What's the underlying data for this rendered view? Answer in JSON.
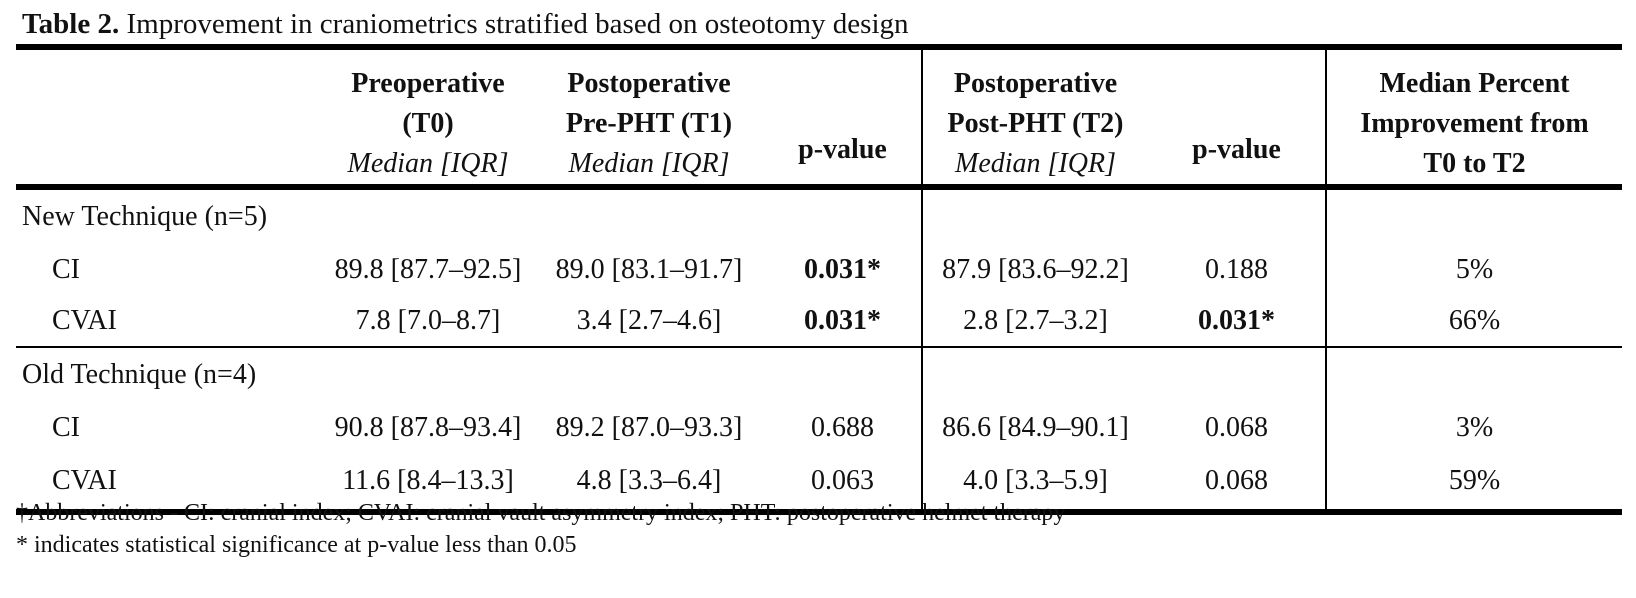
{
  "caption": {
    "label": "Table 2.",
    "text": " Improvement in craniometrics stratified based on osteotomy design"
  },
  "header": {
    "pre": {
      "line1": "Preoperative",
      "line2": "(T0)",
      "sub": "Median [IQR]"
    },
    "post1": {
      "line1": "Postoperative",
      "line2": "Pre-PHT (T1)",
      "sub": "Median [IQR]"
    },
    "pval1": "p-value",
    "post2": {
      "line1": "Postoperative",
      "line2": "Post-PHT (T2)",
      "sub": "Median [IQR]"
    },
    "pval2": "p-value",
    "pct": {
      "line1": "Median Percent",
      "line2": "Improvement from",
      "line3": "T0 to T2"
    }
  },
  "groups": [
    {
      "label": "New Technique (n=5)",
      "rows": [
        {
          "name": "CI",
          "t0": "89.8 [87.7–92.5]",
          "t1": "89.0 [83.1–91.7]",
          "p1": "0.031*",
          "t2": "87.9 [83.6–92.2]",
          "p2": "0.188",
          "pct": "5%"
        },
        {
          "name": "CVAI",
          "t0": "7.8 [7.0–8.7]",
          "t1": "3.4 [2.7–4.6]",
          "p1": "0.031*",
          "t2": "2.8 [2.7–3.2]",
          "p2": "0.031*",
          "pct": "66%"
        }
      ]
    },
    {
      "label": "Old Technique (n=4)",
      "rows": [
        {
          "name": "CI",
          "t0": "90.8 [87.8–93.4]",
          "t1": "89.2 [87.0–93.3]",
          "p1": "0.688",
          "t2": "86.6 [84.9–90.1]",
          "p2": "0.068",
          "pct": "3%"
        },
        {
          "name": "CVAI",
          "t0": "11.6 [8.4–13.3]",
          "t1": "4.8 [3.3–6.4]",
          "p1": "0.063",
          "t2": "4.0 [3.3–5.9]",
          "p2": "0.068",
          "pct": "59%"
        }
      ]
    }
  ],
  "footnotes": {
    "abbrev": "†Abbreviations - CI: cranial index; CVAI: cranial vault asymmetry index; PHT: postoperative helmet therapy",
    "significance": "* indicates statistical significance at p-value less than 0.05"
  }
}
